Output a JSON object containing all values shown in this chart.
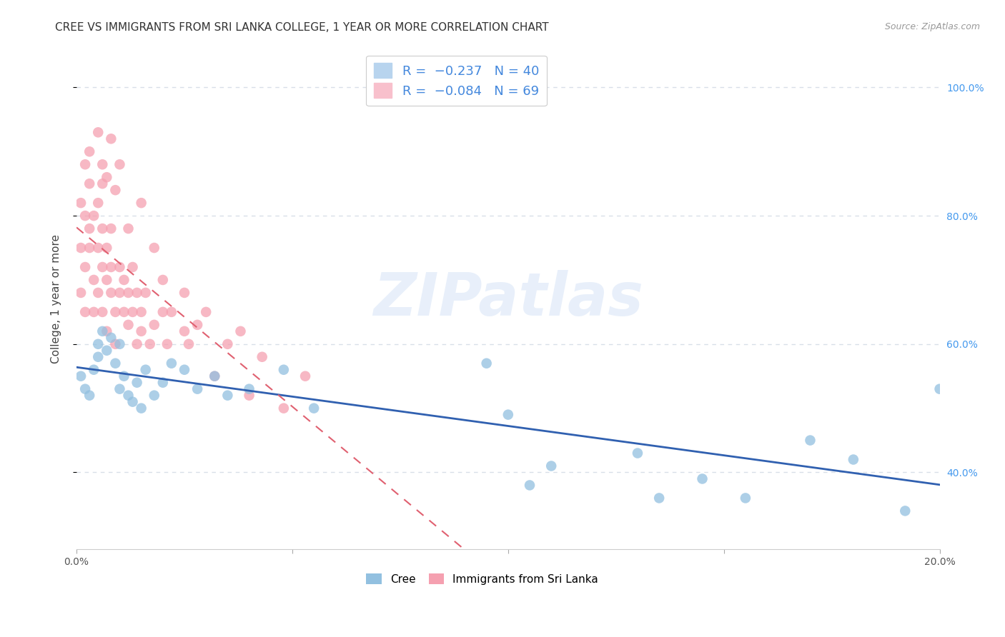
{
  "title": "CREE VS IMMIGRANTS FROM SRI LANKA COLLEGE, 1 YEAR OR MORE CORRELATION CHART",
  "source": "Source: ZipAtlas.com",
  "ylabel": "College, 1 year or more",
  "x_min": 0.0,
  "x_max": 0.2,
  "y_min": 0.28,
  "y_max": 1.06,
  "x_ticks": [
    0.0,
    0.05,
    0.1,
    0.15,
    0.2
  ],
  "y_ticks": [
    0.4,
    0.6,
    0.8,
    1.0
  ],
  "y_tick_labels": [
    "40.0%",
    "60.0%",
    "80.0%",
    "100.0%"
  ],
  "watermark": "ZIPatlas",
  "cree_color": "#92c0e0",
  "srilanka_color": "#f5a0b0",
  "cree_line_color": "#3060b0",
  "srilanka_line_color": "#e06070",
  "background_color": "#ffffff",
  "grid_color": "#d8dfe8",
  "title_fontsize": 11,
  "axis_label_fontsize": 11,
  "tick_fontsize": 10,
  "legend_fontsize": 12,
  "cree_x": [
    0.001,
    0.002,
    0.003,
    0.004,
    0.005,
    0.005,
    0.006,
    0.007,
    0.008,
    0.009,
    0.01,
    0.01,
    0.011,
    0.012,
    0.013,
    0.014,
    0.015,
    0.016,
    0.018,
    0.02,
    0.022,
    0.025,
    0.028,
    0.032,
    0.035,
    0.04,
    0.048,
    0.055,
    0.095,
    0.1,
    0.105,
    0.11,
    0.13,
    0.135,
    0.145,
    0.155,
    0.17,
    0.18,
    0.192,
    0.2
  ],
  "cree_y": [
    0.55,
    0.53,
    0.52,
    0.56,
    0.58,
    0.6,
    0.62,
    0.59,
    0.61,
    0.57,
    0.6,
    0.53,
    0.55,
    0.52,
    0.51,
    0.54,
    0.5,
    0.56,
    0.52,
    0.54,
    0.57,
    0.56,
    0.53,
    0.55,
    0.52,
    0.53,
    0.56,
    0.5,
    0.57,
    0.49,
    0.38,
    0.41,
    0.43,
    0.36,
    0.39,
    0.36,
    0.45,
    0.42,
    0.34,
    0.53
  ],
  "sl_x": [
    0.001,
    0.001,
    0.001,
    0.002,
    0.002,
    0.002,
    0.002,
    0.003,
    0.003,
    0.003,
    0.003,
    0.004,
    0.004,
    0.004,
    0.005,
    0.005,
    0.005,
    0.006,
    0.006,
    0.006,
    0.006,
    0.007,
    0.007,
    0.007,
    0.008,
    0.008,
    0.008,
    0.009,
    0.009,
    0.01,
    0.01,
    0.011,
    0.011,
    0.012,
    0.012,
    0.013,
    0.013,
    0.014,
    0.014,
    0.015,
    0.015,
    0.016,
    0.017,
    0.018,
    0.02,
    0.02,
    0.021,
    0.022,
    0.025,
    0.025,
    0.026,
    0.028,
    0.03,
    0.032,
    0.035,
    0.038,
    0.04,
    0.043,
    0.048,
    0.053,
    0.005,
    0.006,
    0.007,
    0.008,
    0.009,
    0.01,
    0.012,
    0.015,
    0.018
  ],
  "sl_y": [
    0.68,
    0.75,
    0.82,
    0.65,
    0.72,
    0.8,
    0.88,
    0.85,
    0.9,
    0.78,
    0.75,
    0.7,
    0.65,
    0.8,
    0.75,
    0.82,
    0.68,
    0.72,
    0.78,
    0.85,
    0.65,
    0.62,
    0.7,
    0.75,
    0.68,
    0.72,
    0.78,
    0.6,
    0.65,
    0.68,
    0.72,
    0.65,
    0.7,
    0.63,
    0.68,
    0.65,
    0.72,
    0.6,
    0.68,
    0.65,
    0.62,
    0.68,
    0.6,
    0.63,
    0.65,
    0.7,
    0.6,
    0.65,
    0.62,
    0.68,
    0.6,
    0.63,
    0.65,
    0.55,
    0.6,
    0.62,
    0.52,
    0.58,
    0.5,
    0.55,
    0.93,
    0.88,
    0.86,
    0.92,
    0.84,
    0.88,
    0.78,
    0.82,
    0.75
  ]
}
